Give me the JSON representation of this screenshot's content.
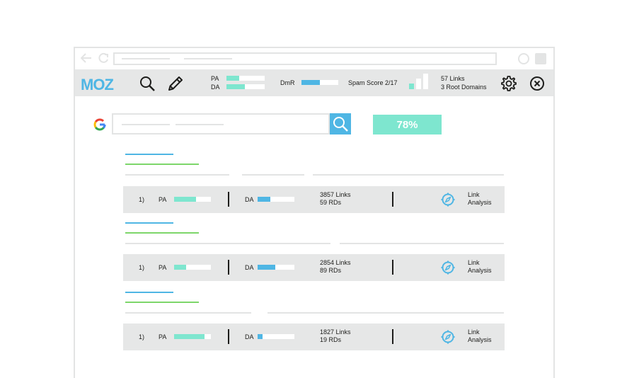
{
  "colors": {
    "blue": "#4fb6e4",
    "teal": "#7ee6cf",
    "green": "#7dd66a",
    "light_gray": "#e3e4e4",
    "bar_gray": "#e6e7e7",
    "google_blue": "#4285f4",
    "google_red": "#ea4335",
    "google_yellow": "#fbbc05",
    "google_green": "#34a853"
  },
  "browser": {
    "icons": [
      "back-arrow-icon",
      "reload-icon",
      "window-circle-icon",
      "window-square-icon"
    ]
  },
  "mozbar": {
    "logo": "MOZ",
    "pa_label": "PA",
    "da_label": "DA",
    "pa_level": 0.33,
    "da_level": 0.48,
    "dmr_label": "DmR",
    "dmr_level": 0.5,
    "spam_label": "Spam Score 2/17",
    "spam_score": 2,
    "spam_max": 17,
    "links": "57 Links",
    "root_domains": "3 Root Domains",
    "icons": [
      "search-icon",
      "pencil-icon",
      "gear-icon",
      "close-icon"
    ]
  },
  "search": {
    "percent": "78%",
    "icons": [
      "google-icon",
      "search-icon"
    ]
  },
  "results": [
    {
      "rank": "1)",
      "pa_label": "PA",
      "pa_level": 0.6,
      "da_label": "DA",
      "da_level": 0.35,
      "links": "3857 Links",
      "rds": "59 RDs",
      "action_line1": "Link",
      "action_line2": "Analysis"
    },
    {
      "rank": "1)",
      "pa_label": "PA",
      "pa_level": 0.32,
      "da_label": "DA",
      "da_level": 0.48,
      "links": "2854 Links",
      "rds": "89 RDs",
      "action_line1": "Link",
      "action_line2": "Analysis"
    },
    {
      "rank": "1)",
      "pa_label": "PA",
      "pa_level": 0.82,
      "da_label": "DA",
      "da_level": 0.14,
      "links": "1827 Links",
      "rds": "19 RDs",
      "action_line1": "Link",
      "action_line2": "Analysis"
    }
  ]
}
